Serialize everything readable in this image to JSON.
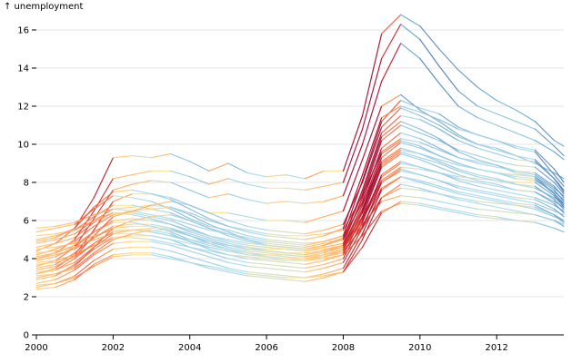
{
  "chart_data": {
    "type": "line",
    "title": "",
    "ylabel": "↑ unemployment",
    "xlabel": "",
    "xlim": [
      2000,
      2013.75
    ],
    "ylim": [
      0,
      17
    ],
    "x_ticks": [
      "2000",
      "2002",
      "2004",
      "2006",
      "2008",
      "2010",
      "2012"
    ],
    "y_ticks": [
      "0",
      "2",
      "4",
      "6",
      "8",
      "10",
      "12",
      "14",
      "16"
    ],
    "grid": "horizontal",
    "color_encoding": "segment colour by rate of change: red rising, yellow flat, blue falling",
    "colors": {
      "rising_strong": "#a50026",
      "rising": "#f46d43",
      "flat": "#fee090",
      "falling": "#abd9e9",
      "falling_strong": "#4575b4",
      "grid": "#e6e6e6"
    },
    "x": [
      2000,
      2000.5,
      2001,
      2001.5,
      2002,
      2002.5,
      2003,
      2003.5,
      2004,
      2004.5,
      2005,
      2005.5,
      2006,
      2006.5,
      2007,
      2007.5,
      2008,
      2008.5,
      2009,
      2009.5,
      2010,
      2010.5,
      2011,
      2011.5,
      2012,
      2012.5,
      2013,
      2013.5,
      2013.75
    ],
    "series": [
      {
        "name": "s1",
        "values": [
          4.4,
          4.8,
          5.6,
          7.2,
          9.3,
          9.4,
          9.3,
          9.5,
          9.1,
          8.6,
          9.0,
          8.5,
          8.3,
          8.4,
          8.2,
          8.6,
          8.6,
          11.5,
          15.8,
          16.8,
          16.2,
          15.0,
          13.9,
          13.0,
          12.3,
          11.8,
          11.2,
          10.2,
          9.9
        ]
      },
      {
        "name": "s2",
        "values": [
          4.0,
          4.3,
          5.0,
          6.5,
          8.2,
          8.4,
          8.6,
          8.6,
          8.3,
          7.9,
          8.2,
          7.9,
          7.7,
          7.7,
          7.6,
          7.8,
          8.0,
          10.8,
          14.5,
          16.3,
          15.5,
          14.1,
          12.8,
          12.0,
          11.6,
          11.2,
          10.8,
          9.9,
          9.4
        ]
      },
      {
        "name": "s3",
        "values": [
          3.6,
          3.9,
          4.6,
          6.1,
          7.6,
          7.9,
          8.1,
          8.0,
          7.6,
          7.2,
          7.4,
          7.1,
          6.9,
          7.0,
          6.9,
          7.0,
          7.3,
          10.0,
          13.3,
          15.3,
          14.5,
          13.2,
          12.0,
          11.4,
          11.0,
          10.6,
          10.2,
          9.6,
          9.2
        ]
      },
      {
        "name": "s4",
        "values": [
          3.2,
          3.5,
          4.2,
          5.5,
          7.0,
          7.4,
          7.4,
          7.2,
          6.8,
          6.4,
          6.4,
          6.2,
          6.0,
          6.0,
          5.9,
          6.2,
          6.5,
          9.2,
          12.0,
          12.6,
          11.8,
          11.2,
          10.5,
          10.0,
          9.8,
          9.4,
          9.0,
          8.5,
          8.2
        ]
      },
      {
        "name": "s5",
        "values": [
          5.4,
          5.6,
          5.8,
          6.6,
          7.3,
          7.2,
          7.0,
          6.6,
          6.1,
          5.7,
          5.5,
          5.2,
          5.0,
          4.9,
          4.8,
          4.9,
          5.2,
          8.1,
          11.2,
          12.3,
          11.9,
          11.6,
          10.9,
          10.5,
          10.2,
          9.8,
          9.6,
          8.4,
          7.8
        ]
      },
      {
        "name": "s6",
        "values": [
          5.0,
          5.2,
          5.5,
          6.2,
          6.8,
          6.8,
          6.6,
          6.4,
          6.0,
          5.6,
          5.3,
          5.0,
          4.8,
          4.7,
          4.6,
          4.8,
          5.0,
          7.6,
          10.6,
          11.5,
          11.3,
          10.8,
          10.2,
          9.8,
          9.5,
          9.2,
          9.1,
          8.2,
          7.6
        ]
      },
      {
        "name": "s7",
        "values": [
          4.6,
          4.8,
          5.1,
          5.9,
          6.4,
          6.4,
          6.2,
          6.0,
          5.6,
          5.2,
          4.9,
          4.7,
          4.6,
          4.5,
          4.4,
          4.6,
          4.8,
          7.2,
          10.2,
          11.0,
          10.6,
          10.2,
          9.7,
          9.4,
          9.1,
          8.9,
          8.8,
          8.0,
          7.4
        ]
      },
      {
        "name": "s8",
        "values": [
          4.2,
          4.5,
          4.9,
          5.7,
          6.3,
          6.5,
          6.6,
          6.7,
          6.3,
          5.8,
          5.4,
          5.0,
          4.7,
          4.6,
          4.5,
          4.7,
          5.0,
          7.0,
          9.8,
          10.6,
          10.3,
          9.8,
          9.3,
          9.1,
          8.9,
          8.6,
          8.4,
          7.7,
          7.3
        ]
      },
      {
        "name": "s9",
        "values": [
          3.9,
          4.1,
          4.6,
          5.4,
          6.0,
          6.1,
          6.0,
          5.8,
          5.4,
          5.1,
          4.8,
          4.6,
          4.4,
          4.3,
          4.2,
          4.4,
          4.7,
          6.8,
          9.5,
          10.2,
          9.9,
          9.4,
          9.0,
          8.7,
          8.5,
          8.2,
          8.1,
          7.5,
          7.1
        ]
      },
      {
        "name": "s10",
        "values": [
          3.5,
          3.7,
          4.3,
          5.1,
          5.7,
          5.8,
          5.8,
          5.6,
          5.2,
          4.8,
          4.5,
          4.3,
          4.1,
          4.0,
          3.9,
          4.1,
          4.4,
          6.5,
          9.1,
          9.8,
          9.5,
          9.1,
          8.7,
          8.4,
          8.2,
          7.9,
          7.7,
          7.2,
          6.9
        ]
      },
      {
        "name": "s11",
        "values": [
          3.2,
          3.4,
          4.0,
          4.8,
          5.4,
          5.5,
          5.5,
          5.3,
          4.9,
          4.5,
          4.2,
          4.0,
          3.9,
          3.8,
          3.7,
          3.9,
          4.2,
          6.2,
          8.8,
          9.5,
          9.2,
          8.8,
          8.4,
          8.1,
          7.9,
          7.6,
          7.5,
          7.0,
          6.7
        ]
      },
      {
        "name": "s12",
        "values": [
          2.9,
          3.1,
          3.7,
          4.5,
          5.1,
          5.2,
          5.2,
          5.0,
          4.6,
          4.3,
          4.0,
          3.8,
          3.7,
          3.6,
          3.5,
          3.7,
          4.0,
          5.9,
          8.4,
          9.1,
          8.8,
          8.5,
          8.1,
          7.8,
          7.6,
          7.4,
          7.2,
          6.8,
          6.5
        ]
      },
      {
        "name": "s13",
        "values": [
          2.7,
          2.9,
          3.4,
          4.2,
          4.8,
          4.9,
          4.9,
          4.7,
          4.4,
          4.1,
          3.8,
          3.6,
          3.5,
          3.4,
          3.3,
          3.5,
          3.8,
          5.6,
          8.0,
          8.7,
          8.4,
          8.1,
          7.7,
          7.5,
          7.3,
          7.1,
          6.9,
          6.5,
          6.3
        ]
      },
      {
        "name": "s14",
        "values": [
          2.5,
          2.7,
          3.1,
          3.9,
          4.5,
          4.6,
          4.6,
          4.4,
          4.1,
          3.8,
          3.5,
          3.3,
          3.2,
          3.1,
          3.0,
          3.2,
          3.5,
          5.3,
          7.6,
          8.3,
          8.0,
          7.7,
          7.4,
          7.2,
          7.0,
          6.8,
          6.6,
          6.2,
          6.0
        ]
      },
      {
        "name": "s15",
        "values": [
          2.4,
          2.5,
          2.9,
          3.7,
          4.2,
          4.3,
          4.3,
          4.1,
          3.8,
          3.5,
          3.3,
          3.1,
          3.0,
          2.9,
          2.8,
          3.0,
          3.3,
          5.0,
          7.2,
          7.9,
          7.7,
          7.4,
          7.1,
          6.9,
          6.7,
          6.5,
          6.3,
          6.0,
          5.8
        ]
      },
      {
        "name": "s16",
        "values": [
          3.0,
          3.2,
          3.6,
          4.6,
          5.6,
          6.0,
          6.2,
          6.3,
          6.0,
          5.6,
          5.2,
          4.9,
          4.7,
          4.6,
          4.5,
          4.7,
          5.1,
          7.4,
          10.4,
          11.2,
          10.8,
          10.3,
          9.6,
          9.2,
          8.9,
          8.5,
          8.3,
          7.4,
          6.8
        ]
      },
      {
        "name": "s17",
        "values": [
          4.8,
          5.0,
          5.3,
          6.0,
          6.6,
          6.7,
          6.8,
          6.7,
          6.4,
          6.0,
          5.7,
          5.5,
          5.3,
          5.2,
          5.2,
          5.3,
          5.5,
          7.3,
          9.6,
          10.3,
          10.1,
          9.7,
          9.3,
          9.0,
          8.8,
          8.6,
          8.5,
          7.8,
          7.2
        ]
      },
      {
        "name": "s18",
        "values": [
          5.6,
          5.7,
          5.9,
          6.3,
          6.6,
          6.5,
          6.3,
          6.1,
          5.8,
          5.5,
          5.3,
          5.1,
          4.9,
          4.8,
          4.7,
          4.9,
          5.2,
          6.9,
          9.0,
          9.7,
          9.5,
          9.2,
          8.9,
          8.7,
          8.5,
          8.4,
          8.3,
          7.6,
          7.0
        ]
      },
      {
        "name": "s19",
        "values": [
          3.4,
          3.6,
          4.1,
          5.2,
          6.2,
          6.5,
          6.8,
          7.0,
          6.8,
          6.4,
          6.0,
          5.7,
          5.5,
          5.4,
          5.3,
          5.5,
          5.8,
          8.0,
          10.9,
          11.9,
          11.5,
          11.0,
          10.4,
          10.0,
          9.7,
          9.4,
          9.2,
          8.2,
          7.5
        ]
      },
      {
        "name": "s20",
        "values": [
          4.1,
          4.3,
          4.7,
          5.4,
          5.9,
          5.9,
          5.7,
          5.4,
          5.0,
          4.7,
          4.5,
          4.3,
          4.2,
          4.1,
          4.0,
          4.2,
          4.5,
          6.0,
          8.0,
          8.6,
          8.4,
          8.1,
          7.8,
          7.6,
          7.4,
          7.2,
          7.1,
          6.6,
          6.2
        ]
      },
      {
        "name": "s21",
        "values": [
          4.3,
          4.4,
          4.6,
          5.0,
          5.3,
          5.3,
          5.2,
          5.0,
          4.8,
          4.6,
          4.4,
          4.3,
          4.2,
          4.2,
          4.1,
          4.2,
          4.4,
          5.6,
          7.2,
          7.7,
          7.6,
          7.4,
          7.2,
          7.0,
          6.9,
          6.8,
          6.7,
          6.3,
          6.0
        ]
      },
      {
        "name": "s22",
        "values": [
          4.5,
          4.6,
          4.8,
          5.2,
          5.5,
          5.5,
          5.4,
          5.2,
          5.0,
          4.8,
          4.7,
          4.6,
          4.5,
          4.5,
          4.4,
          4.5,
          4.7,
          5.8,
          7.0,
          7.3,
          7.2,
          7.0,
          6.8,
          6.6,
          6.5,
          6.4,
          6.3,
          6.0,
          5.7
        ]
      },
      {
        "name": "s23",
        "values": [
          3.8,
          3.9,
          4.2,
          4.7,
          5.1,
          5.1,
          5.0,
          4.8,
          4.6,
          4.4,
          4.2,
          4.1,
          4.0,
          3.9,
          3.9,
          4.0,
          4.2,
          5.2,
          6.5,
          6.9,
          6.8,
          6.6,
          6.4,
          6.2,
          6.1,
          6.0,
          5.9,
          5.6,
          5.4
        ]
      },
      {
        "name": "s24",
        "values": [
          5.2,
          5.3,
          5.5,
          6.0,
          6.4,
          6.3,
          6.1,
          5.8,
          5.5,
          5.2,
          5.0,
          4.8,
          4.7,
          4.6,
          4.5,
          4.6,
          4.8,
          6.2,
          8.1,
          8.8,
          8.7,
          8.5,
          8.3,
          8.2,
          8.1,
          8.0,
          8.0,
          7.3,
          6.7
        ]
      },
      {
        "name": "s25",
        "values": [
          3.1,
          3.2,
          3.5,
          4.3,
          5.0,
          5.3,
          5.5,
          5.5,
          5.2,
          4.9,
          4.6,
          4.4,
          4.3,
          4.2,
          4.1,
          4.3,
          4.6,
          6.4,
          8.9,
          9.6,
          9.3,
          9.0,
          8.6,
          8.3,
          8.1,
          7.9,
          7.8,
          7.1,
          6.6
        ]
      },
      {
        "name": "s26",
        "values": [
          4.9,
          5.1,
          5.6,
          6.7,
          7.5,
          7.6,
          7.4,
          7.1,
          6.6,
          6.1,
          5.7,
          5.4,
          5.2,
          5.1,
          5.0,
          5.2,
          5.6,
          8.4,
          11.4,
          12.0,
          11.7,
          11.3,
          10.8,
          10.5,
          10.2,
          9.9,
          9.7,
          8.7,
          8.0
        ]
      },
      {
        "name": "s27",
        "values": [
          2.6,
          2.7,
          3.0,
          3.6,
          4.1,
          4.2,
          4.2,
          4.0,
          3.8,
          3.6,
          3.4,
          3.2,
          3.1,
          3.0,
          3.0,
          3.1,
          3.3,
          4.6,
          6.4,
          7.0,
          6.9,
          6.7,
          6.5,
          6.3,
          6.2,
          6.0,
          5.9,
          5.6,
          5.4
        ]
      },
      {
        "name": "s28",
        "values": [
          4.0,
          4.2,
          4.5,
          5.1,
          5.6,
          5.7,
          5.7,
          5.5,
          5.2,
          4.9,
          4.7,
          4.5,
          4.4,
          4.3,
          4.3,
          4.4,
          4.6,
          6.1,
          8.3,
          9.0,
          8.8,
          8.5,
          8.2,
          8.0,
          7.8,
          7.6,
          7.5,
          6.9,
          6.4
        ]
      },
      {
        "name": "s29",
        "values": [
          3.3,
          3.4,
          3.8,
          4.6,
          5.3,
          5.5,
          5.6,
          5.6,
          5.3,
          5.0,
          4.7,
          4.5,
          4.4,
          4.3,
          4.2,
          4.4,
          4.7,
          6.6,
          9.3,
          10.1,
          9.8,
          9.4,
          9.0,
          8.7,
          8.5,
          8.3,
          8.2,
          7.4,
          6.9
        ]
      },
      {
        "name": "s30",
        "values": [
          3.7,
          3.8,
          4.1,
          4.8,
          5.4,
          5.5,
          5.4,
          5.2,
          4.9,
          4.6,
          4.4,
          4.2,
          4.1,
          4.0,
          4.0,
          4.1,
          4.3,
          5.7,
          7.7,
          8.3,
          8.1,
          7.8,
          7.5,
          7.3,
          7.1,
          6.9,
          6.8,
          6.3,
          5.9
        ]
      }
    ]
  }
}
